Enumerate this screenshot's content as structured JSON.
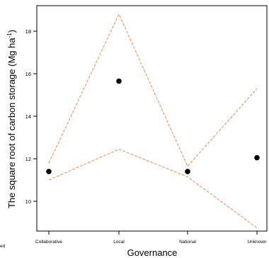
{
  "chart_data": {
    "type": "scatter",
    "categories": [
      "Collaborative",
      "Local",
      "National",
      "Unknown"
    ],
    "points": [
      11.4,
      15.65,
      11.4,
      12.05
    ],
    "upper": [
      11.8,
      18.8,
      11.65,
      15.3
    ],
    "lower": [
      11.0,
      12.45,
      11.15,
      8.75
    ],
    "xlabel": "Governance",
    "ylabel": "The square root of carbon storage (Mg ha",
    "ylabel_sup": "-1",
    "ylabel_close": ")",
    "yticks": [
      10,
      12,
      14,
      16,
      18
    ],
    "ylim": [
      8.6,
      19.2
    ],
    "point_color": "#000000",
    "interval_color": "#f08a4b",
    "grid": false
  },
  "edge_note": "ed"
}
